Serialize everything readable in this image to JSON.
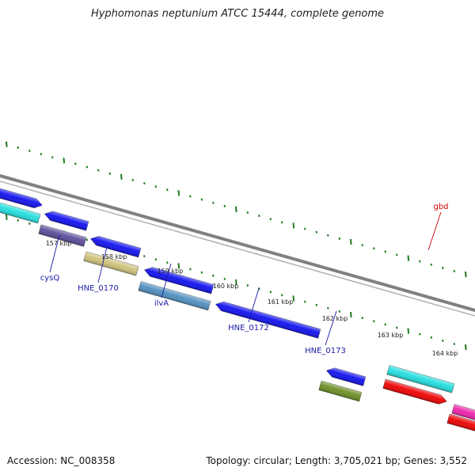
{
  "title": "Hyphomonas neptunium ATCC 15444, complete genome",
  "footer": {
    "accession": "Accession: NC_008358",
    "summary": "Topology: circular; Length: 3,705,021 bp; Genes: 3,552"
  },
  "colors": {
    "backbone": "#808080",
    "tick": "#1f7a1f",
    "label_blue": "#1a1aa8",
    "label_red": "#cc0000"
  },
  "kbp_labels": [
    "157 kbp",
    "158 kbp",
    "159 kbp",
    "160 kbp",
    "161 kbp",
    "162 kbp",
    "163 kbp",
    "164 kbp"
  ],
  "genes": [
    {
      "label": "",
      "color": "#1010ee",
      "strand": "outer"
    },
    {
      "label": "",
      "color": "#1010ee",
      "strand": "outer"
    },
    {
      "label": "",
      "color": "#1010ee",
      "strand": "outer"
    },
    {
      "label": "",
      "color": "#1010ee",
      "strand": "inner"
    },
    {
      "label": "",
      "color": "#1010ee",
      "strand": "inner"
    },
    {
      "label": "",
      "color": "#1010ee",
      "strand": "inner"
    },
    {
      "label": "",
      "color": "#22dddd",
      "strand": "outer"
    },
    {
      "label": "",
      "color": "#ee22aa",
      "strand": "outer"
    },
    {
      "label": "",
      "color": "#ee0000",
      "strand": "inner"
    },
    {
      "label": "",
      "color": "#ee0000",
      "strand": "inner"
    },
    {
      "label": "cysQ",
      "color": "#22dddd",
      "strand": "inner"
    },
    {
      "label": "HNE_0170",
      "color": "#5a4b9a",
      "strand": "inner"
    },
    {
      "label": "",
      "color": "#cfc27a",
      "strand": "inner"
    },
    {
      "label": "ilvA",
      "color": "#4f8fc0",
      "strand": "inner"
    },
    {
      "label": "HNE_0172",
      "color": "#1010ee",
      "strand": "inner"
    },
    {
      "label": "HNE_0173",
      "color": "#6b8e23",
      "strand": "inner"
    },
    {
      "label": "gbd",
      "color": "#22dddd",
      "strand": "outer"
    }
  ]
}
